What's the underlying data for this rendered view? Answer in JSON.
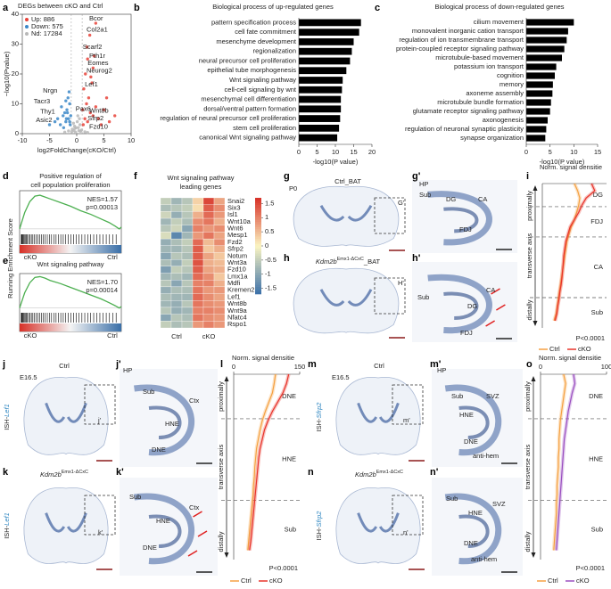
{
  "chart_data": [
    {
      "letter": "a",
      "type": "scatter",
      "title": "DEGs between cKO and Ctrl",
      "xlabel": "log2FoldChange(cKO/Ctrl)",
      "ylabel": "−log10(Pvalue)",
      "xlim": [
        -10,
        10
      ],
      "xticks": [
        -10,
        -5,
        0,
        5,
        10
      ],
      "ylim": [
        0,
        40
      ],
      "yticks": [
        0,
        10,
        20,
        30,
        40
      ],
      "series": [
        {
          "name": "Up: 886",
          "color": "#e8433a",
          "x": [
            1.2,
            1.5,
            2,
            2.5,
            1.8,
            3,
            3.5,
            2.2,
            4,
            5,
            1.3,
            2.8,
            6,
            1.6,
            3,
            2,
            4.5,
            1.1,
            7,
            2.4,
            3.5,
            1.9,
            3.2,
            2.6,
            5.5
          ],
          "y": [
            3,
            5,
            4,
            7,
            10,
            6,
            9,
            12,
            5,
            8,
            15,
            17,
            4,
            20,
            22,
            25,
            3,
            8,
            6,
            33,
            37,
            29,
            26,
            19,
            12
          ]
        },
        {
          "name": "Down: 575",
          "color": "#3a87c8",
          "x": [
            -1.2,
            -1.5,
            -2,
            -2.5,
            -1.8,
            -3,
            -1.3,
            -2.2,
            -1.6,
            -4,
            -1.1,
            -2.8,
            -1.4,
            -3.5,
            -2,
            -1.7,
            -5,
            -1.3,
            -2.4,
            -1.9
          ],
          "y": [
            3,
            5,
            4,
            6,
            8,
            3,
            10,
            7,
            12,
            4,
            6,
            9,
            14,
            5,
            11,
            7,
            3,
            4,
            2,
            5
          ]
        },
        {
          "name": "Nd: 17284",
          "color": "#b8b8b8",
          "x": [
            -0.5,
            0.3,
            -0.2,
            0.6,
            -0.8,
            0.1,
            0.4,
            -0.4,
            0.7,
            -0.6,
            0.2,
            -0.1,
            0.9,
            -0.9,
            0.5,
            -0.3,
            1.5,
            -1.5,
            2,
            -2.2
          ],
          "y": [
            1,
            2,
            0.5,
            3,
            1.5,
            4,
            1,
            2.5,
            0.8,
            3.5,
            6,
            2,
            1.2,
            0.7,
            5,
            1.8,
            0.6,
            0.9,
            0.4,
            0.5
          ]
        }
      ],
      "annotations": [
        {
          "text": "Bcor",
          "x": 2.3,
          "y": 38.5,
          "color": "#e8433a"
        },
        {
          "text": "Col2a1",
          "x": 1.8,
          "y": 34.7,
          "color": "#e8433a"
        },
        {
          "text": "Scarf2",
          "x": 1.1,
          "y": 29,
          "color": "#e8433a"
        },
        {
          "text": "Pth1r",
          "x": 2.3,
          "y": 26,
          "color": "#e8433a"
        },
        {
          "text": "Eomes",
          "x": 2,
          "y": 23.6,
          "color": "#e8433a"
        },
        {
          "text": "Neurog2",
          "x": 1.8,
          "y": 21,
          "color": "#e8433a"
        },
        {
          "text": "Lef1",
          "x": 1.5,
          "y": 16.4,
          "color": "#e8433a"
        },
        {
          "text": "Pax6",
          "x": -0.2,
          "y": 8.2,
          "color": "#e8433a"
        },
        {
          "text": "Wnt8b",
          "x": 2.3,
          "y": 7.6,
          "color": "#e8433a"
        },
        {
          "text": "Sfrp2",
          "x": 2,
          "y": 5,
          "color": "#e8433a"
        },
        {
          "text": "Fzd10",
          "x": 2.3,
          "y": 2.3,
          "color": "#e8433a"
        },
        {
          "text": "Nrgn",
          "x": -6.2,
          "y": 14.3,
          "color": "#3a87c8"
        },
        {
          "text": "Tacr3",
          "x": -7.9,
          "y": 10.8,
          "color": "#3a87c8"
        },
        {
          "text": "Thy1",
          "x": -6.7,
          "y": 7.3,
          "color": "#3a87c8"
        },
        {
          "text": "Asic2",
          "x": -7.5,
          "y": 4.4,
          "color": "#3a87c8"
        }
      ]
    },
    {
      "letter": "b",
      "type": "barh",
      "title": "Biological process of up-regulated genes",
      "xlabel": "-log10(P value)",
      "color": "#000000",
      "categories": [
        "pattern specification process",
        "cell fate commitment",
        "mesenchyme development",
        "regionalization",
        "neural precursor cell proliferation",
        "epithelial tube morphogenesis",
        "Wnt signaling pathway",
        "cell-cell signaling by wnt",
        "mesenchymal cell differentiation",
        "dorsal/ventral pattern formation",
        "regulation of neural precursor cell proliferation",
        "stem cell proliferation",
        "canonical Wnt signaling pathway"
      ],
      "label_colors": [
        "#222222",
        "#222222",
        "#222222",
        "#222222",
        "#2e86c1",
        "#222222",
        "#e02020",
        "#e02020",
        "#222222",
        "#222222",
        "#2e86c1",
        "#2e86c1",
        "#e02020"
      ],
      "values": [
        17,
        16.5,
        15,
        14.5,
        14,
        13,
        12,
        11.8,
        11.5,
        11.5,
        11.3,
        11,
        10.5
      ],
      "xlim": [
        0,
        20
      ],
      "xticks": [
        0,
        5,
        10,
        15,
        20
      ]
    },
    {
      "letter": "c",
      "type": "barh",
      "title": "Biological process of down-regulated genes",
      "xlabel": "-log10(P value)",
      "color": "#000000",
      "categories": [
        "cilium movement",
        "monovalent inorganic cation transport",
        "regulation of ion transmembrane transport",
        "protein-coupled receptor signaling pathway",
        "microtubule-based movement",
        "potassium ion transport",
        "cognition",
        "memory",
        "axoneme assembly",
        "microtubule bundle formation",
        "glutamate receptor signaling pathway",
        "axonogenesis",
        "regulation of neuronal synaptic plasticity",
        "synapse organization"
      ],
      "label_colors": [
        "#222222",
        "#222222",
        "#222222",
        "#222222",
        "#222222",
        "#222222",
        "#222222",
        "#222222",
        "#222222",
        "#222222",
        "#222222",
        "#222222",
        "#222222",
        "#222222"
      ],
      "values": [
        10,
        8.8,
        8.5,
        8,
        7.5,
        6.3,
        6,
        5.6,
        5.5,
        5.2,
        5,
        4.5,
        4.2,
        4
      ],
      "xlim": [
        0,
        15
      ],
      "xticks": [
        0,
        5,
        10,
        15
      ]
    },
    {
      "letter": "d",
      "type": "gsea",
      "title_lines": [
        "Positive regulation of",
        "cell population proliferation"
      ],
      "title_color": "#2e86c1",
      "ylabel": "Running Enrichment Score",
      "x": [
        0,
        5,
        10,
        15,
        20,
        25,
        30,
        40,
        50,
        60,
        70,
        80,
        88,
        94,
        98,
        100
      ],
      "values": [
        0,
        0.18,
        0.3,
        0.36,
        0.37,
        0.35,
        0.33,
        0.29,
        0.25,
        0.2,
        0.16,
        0.11,
        0.07,
        0.03,
        0,
        0.02
      ],
      "color": "#4caf50",
      "xlim": [
        0,
        100
      ],
      "ylim": [
        -0.05,
        0.42
      ],
      "annotations": [
        "NES=1.57",
        "p=0.00013"
      ],
      "start_label": "cKO",
      "end_label": "Ctrl"
    },
    {
      "letter": "e",
      "type": "gsea",
      "title_lines": [
        "Wnt signaling pathway"
      ],
      "title_color": "#e02020",
      "x": [
        0,
        5,
        10,
        15,
        20,
        25,
        30,
        40,
        50,
        60,
        70,
        80,
        88,
        94,
        98,
        100
      ],
      "values": [
        0,
        0.2,
        0.33,
        0.4,
        0.41,
        0.39,
        0.36,
        0.32,
        0.27,
        0.22,
        0.17,
        0.12,
        0.07,
        0.03,
        0,
        0.02
      ],
      "color": "#4caf50",
      "xlim": [
        0,
        100
      ],
      "ylim": [
        -0.05,
        0.45
      ],
      "annotations": [
        "NES=1.70",
        "p=0.00014"
      ],
      "start_label": "cKO",
      "end_label": "Ctrl"
    },
    {
      "letter": "f",
      "type": "heatmap",
      "title_lines": [
        "Wnt signaling pathway",
        "leading genes"
      ],
      "column_groups": [
        "Ctrl",
        "cKO"
      ],
      "rows": [
        "Snai2",
        "Six3",
        "Isl1",
        "Wnt10a",
        "Wnt6",
        "Mesp1",
        "Fzd2",
        "Sfrp2",
        "Notum",
        "Wnt3a",
        "Fzd10",
        "Lmx1a",
        "Mdfi",
        "Kremen2",
        "Lef1",
        "Wnt8b",
        "Wnt9a",
        "Nfatc4",
        "Rspo1"
      ],
      "values": [
        [
          -0.5,
          -0.8,
          -0.6,
          0.3,
          1.5,
          0.7
        ],
        [
          -0.7,
          -0.6,
          -0.5,
          0.2,
          1.3,
          0.9
        ],
        [
          -0.4,
          -0.9,
          -0.6,
          0.6,
          1.2,
          0.8
        ],
        [
          -0.8,
          -0.5,
          -0.7,
          0.9,
          1.1,
          0.6
        ],
        [
          -0.6,
          -0.4,
          -1,
          1,
          0.8,
          0.9
        ],
        [
          -0.3,
          -1.4,
          -0.8,
          0.8,
          1.1,
          0.7
        ],
        [
          -0.9,
          -0.7,
          -0.5,
          1.2,
          0.5,
          0.9
        ],
        [
          -0.8,
          -0.8,
          -0.6,
          1.3,
          0.4,
          0.6
        ],
        [
          -1,
          -0.6,
          -0.7,
          1.3,
          0.7,
          0.4
        ],
        [
          -0.7,
          -0.9,
          -0.5,
          1.4,
          0.6,
          0.5
        ],
        [
          -1.1,
          -0.5,
          -0.6,
          1.3,
          0.7,
          0.6
        ],
        [
          -0.8,
          -0.7,
          -0.8,
          1.2,
          0.9,
          0.4
        ],
        [
          -0.6,
          -1,
          -0.6,
          1,
          1,
          0.6
        ],
        [
          -0.9,
          -0.7,
          -0.7,
          1.1,
          0.8,
          0.8
        ],
        [
          -0.7,
          -0.8,
          -0.8,
          1.2,
          0.9,
          0.7
        ],
        [
          -0.8,
          -0.9,
          -0.6,
          1.1,
          0.9,
          0.8
        ],
        [
          -0.6,
          -0.9,
          -0.8,
          1,
          1,
          0.9
        ],
        [
          -1,
          -0.6,
          -0.7,
          1.1,
          0.9,
          0.8
        ],
        [
          -0.5,
          -0.7,
          -0.6,
          0.8,
          1,
          0.8
        ]
      ],
      "zlim": [
        -1.7,
        1.7
      ],
      "zticks": [
        1.5,
        1,
        0.5,
        0,
        -0.5,
        -1,
        -1.5
      ],
      "colors": [
        "#3a6fa8",
        "#fbf5c2",
        "#d73027"
      ]
    },
    {
      "letter": "i",
      "type": "profile",
      "title": "Norm. signal densitie",
      "xlim": [
        0,
        300
      ],
      "positions": [
        0,
        0.05,
        0.1,
        0.15,
        0.2,
        0.25,
        0.3,
        0.35,
        0.4,
        0.45,
        0.5,
        0.55,
        0.6,
        0.65,
        0.7,
        0.75,
        0.8,
        0.85,
        0.9,
        0.95
      ],
      "series": [
        {
          "name": "Ctrl",
          "color": "#f5a142",
          "values": [
            150,
            165,
            175,
            170,
            160,
            150,
            135,
            125,
            115,
            110,
            105,
            100,
            95,
            90,
            85,
            80,
            75,
            70,
            65,
            55
          ]
        },
        {
          "name": "cKO",
          "color": "#e8342a",
          "values": [
            230,
            245,
            205,
            185,
            170,
            150,
            130,
            120,
            110,
            105,
            100,
            98,
            95,
            92,
            88,
            82,
            78,
            72,
            68,
            60
          ]
        }
      ],
      "boundaries": [
        0.16,
        0.37,
        0.79
      ],
      "regions": [
        "DG",
        "FDJ",
        "CA",
        "Sub"
      ],
      "axis_label": "transverse axis",
      "start_label": "proximally",
      "end_label": "distally",
      "annotation": "P<0.0001"
    },
    {
      "letter": "l",
      "type": "profile",
      "title": "Norm. signal densitie",
      "xlim": [
        0,
        150
      ],
      "xticks": [
        0,
        150
      ],
      "positions": [
        0,
        0.05,
        0.1,
        0.15,
        0.2,
        0.25,
        0.3,
        0.35,
        0.4,
        0.45,
        0.5,
        0.55,
        0.6,
        0.65,
        0.7,
        0.75,
        0.8,
        0.85,
        0.9,
        0.95
      ],
      "series": [
        {
          "name": "Ctrl",
          "color": "#f5a142",
          "values": [
            95,
            92,
            88,
            80,
            72,
            65,
            60,
            56,
            52,
            50,
            48,
            47,
            45,
            44,
            42,
            40,
            38,
            36,
            34,
            32
          ]
        },
        {
          "name": "cKO",
          "color": "#e8342a",
          "values": [
            125,
            120,
            112,
            100,
            88,
            78,
            70,
            65,
            60,
            57,
            55,
            53,
            51,
            49,
            47,
            45,
            43,
            41,
            39,
            36
          ]
        }
      ],
      "boundaries": [
        0.24,
        0.68
      ],
      "regions": [
        "DNE",
        "HNE",
        "Sub"
      ],
      "axis_label": "transverse axis",
      "start_label": "proximally",
      "end_label": "distally",
      "annotation": "P<0.0001"
    },
    {
      "letter": "o",
      "type": "profile",
      "title": "Norm. signal densitie",
      "xlim": [
        0,
        100
      ],
      "xticks": [
        0,
        100
      ],
      "positions": [
        0,
        0.05,
        0.1,
        0.15,
        0.2,
        0.25,
        0.3,
        0.35,
        0.4,
        0.45,
        0.5,
        0.55,
        0.6,
        0.65,
        0.7,
        0.75,
        0.8,
        0.85,
        0.9,
        0.95
      ],
      "series": [
        {
          "name": "Ctrl",
          "color": "#f5a142",
          "values": [
            35,
            38,
            36,
            34,
            32,
            30,
            29,
            28,
            28,
            27,
            27,
            26,
            25,
            25,
            24,
            24,
            23,
            22,
            21,
            20
          ]
        },
        {
          "name": "cKO",
          "color": "#9a4fc0",
          "values": [
            50,
            52,
            48,
            45,
            42,
            40,
            38,
            36,
            35,
            34,
            33,
            32,
            31,
            30,
            29,
            28,
            27,
            26,
            25,
            24
          ]
        }
      ],
      "boundaries": [
        0.24,
        0.68
      ],
      "regions": [
        "DNE",
        "HNE",
        "Sub"
      ],
      "axis_label": "transverse axis",
      "start_label": "proximally",
      "end_label": "distally",
      "annotation": "P<0.0001"
    }
  ],
  "images": [
    {
      "letter": "g",
      "title_parts": [
        "Ctrl_BAT"
      ],
      "labels": [
        "P0",
        "G'"
      ]
    },
    {
      "letter": "g'",
      "labels": [
        "HP",
        "Sub",
        "DG",
        "CA",
        "FDJ"
      ]
    },
    {
      "letter": "h",
      "title_parts": [
        "Kdm2b",
        "Emx1-ΔCxC",
        "_BAT"
      ],
      "labels": [
        "H'"
      ]
    },
    {
      "letter": "h'",
      "labels": [
        "Sub",
        "CA",
        "DG",
        "FDJ"
      ]
    },
    {
      "letter": "j",
      "title_parts": [
        "Ctrl"
      ],
      "side_parts": [
        "ISH-",
        "Lef1"
      ],
      "labels": [
        "E16.5",
        "j'"
      ]
    },
    {
      "letter": "j'",
      "labels": [
        "HP",
        "Sub",
        "Ctx",
        "HNE",
        "DNE"
      ]
    },
    {
      "letter": "k",
      "title_parts": [
        "Kdm2b",
        "Emx1-ΔCxC"
      ],
      "side_parts": [
        "ISH-",
        "Lef1"
      ],
      "labels": [
        "k'"
      ]
    },
    {
      "letter": "k'",
      "labels": [
        "Sub",
        "Ctx",
        "HNE",
        "DNE"
      ]
    },
    {
      "letter": "m",
      "title_parts": [
        "Ctrl"
      ],
      "side_parts": [
        "ISH-",
        "Sfrp2"
      ],
      "labels": [
        "E16.5",
        "m'"
      ]
    },
    {
      "letter": "m'",
      "labels": [
        "HP",
        "Sub",
        "SVZ",
        "HNE",
        "DNE",
        "anti-hem"
      ]
    },
    {
      "letter": "n",
      "title_parts": [
        "Kdm2b",
        "Emx1-ΔCxC"
      ],
      "side_parts": [
        "ISH-",
        "Sfrp2"
      ],
      "labels": [
        "n'"
      ]
    },
    {
      "letter": "n'",
      "labels": [
        "Sub",
        "HNE",
        "SVZ",
        "DNE",
        "anti-hem"
      ]
    }
  ]
}
